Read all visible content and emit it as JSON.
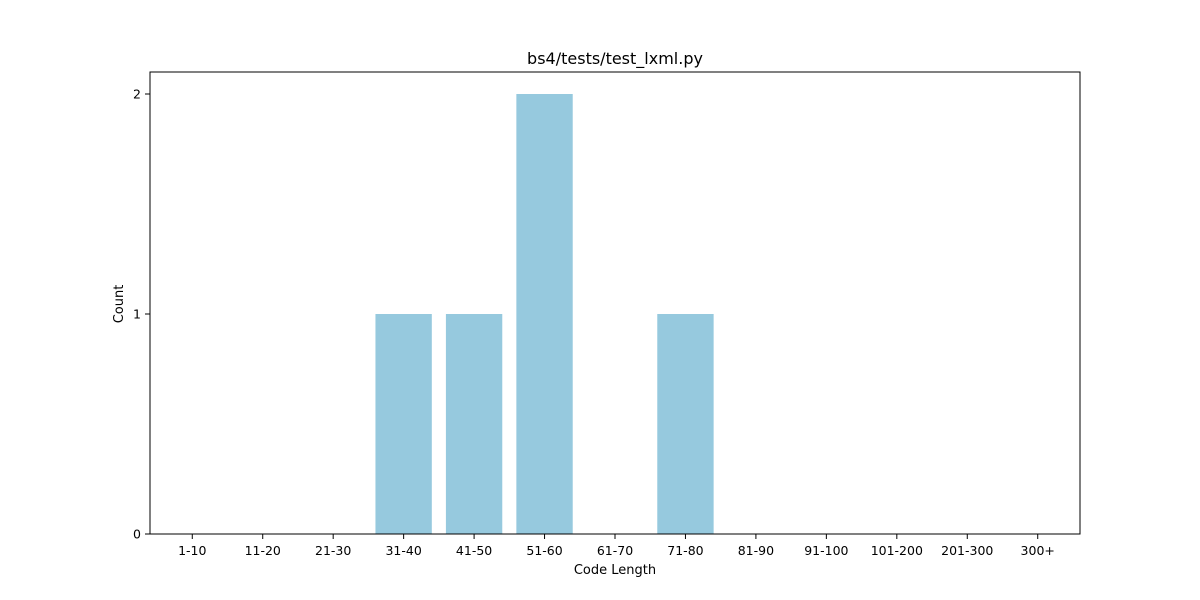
{
  "chart_data": {
    "type": "bar",
    "title": "bs4/tests/test_lxml.py",
    "xlabel": "Code Length",
    "ylabel": "Count",
    "categories": [
      "1-10",
      "11-20",
      "21-30",
      "31-40",
      "41-50",
      "51-60",
      "61-70",
      "71-80",
      "81-90",
      "91-100",
      "101-200",
      "201-300",
      "300+"
    ],
    "values": [
      0,
      0,
      0,
      1,
      1,
      2,
      0,
      1,
      0,
      0,
      0,
      0,
      0
    ],
    "ylim": [
      0,
      2.1
    ],
    "yticks": [
      0,
      1,
      2
    ],
    "grid": false,
    "bar_color": "#96c9de"
  }
}
